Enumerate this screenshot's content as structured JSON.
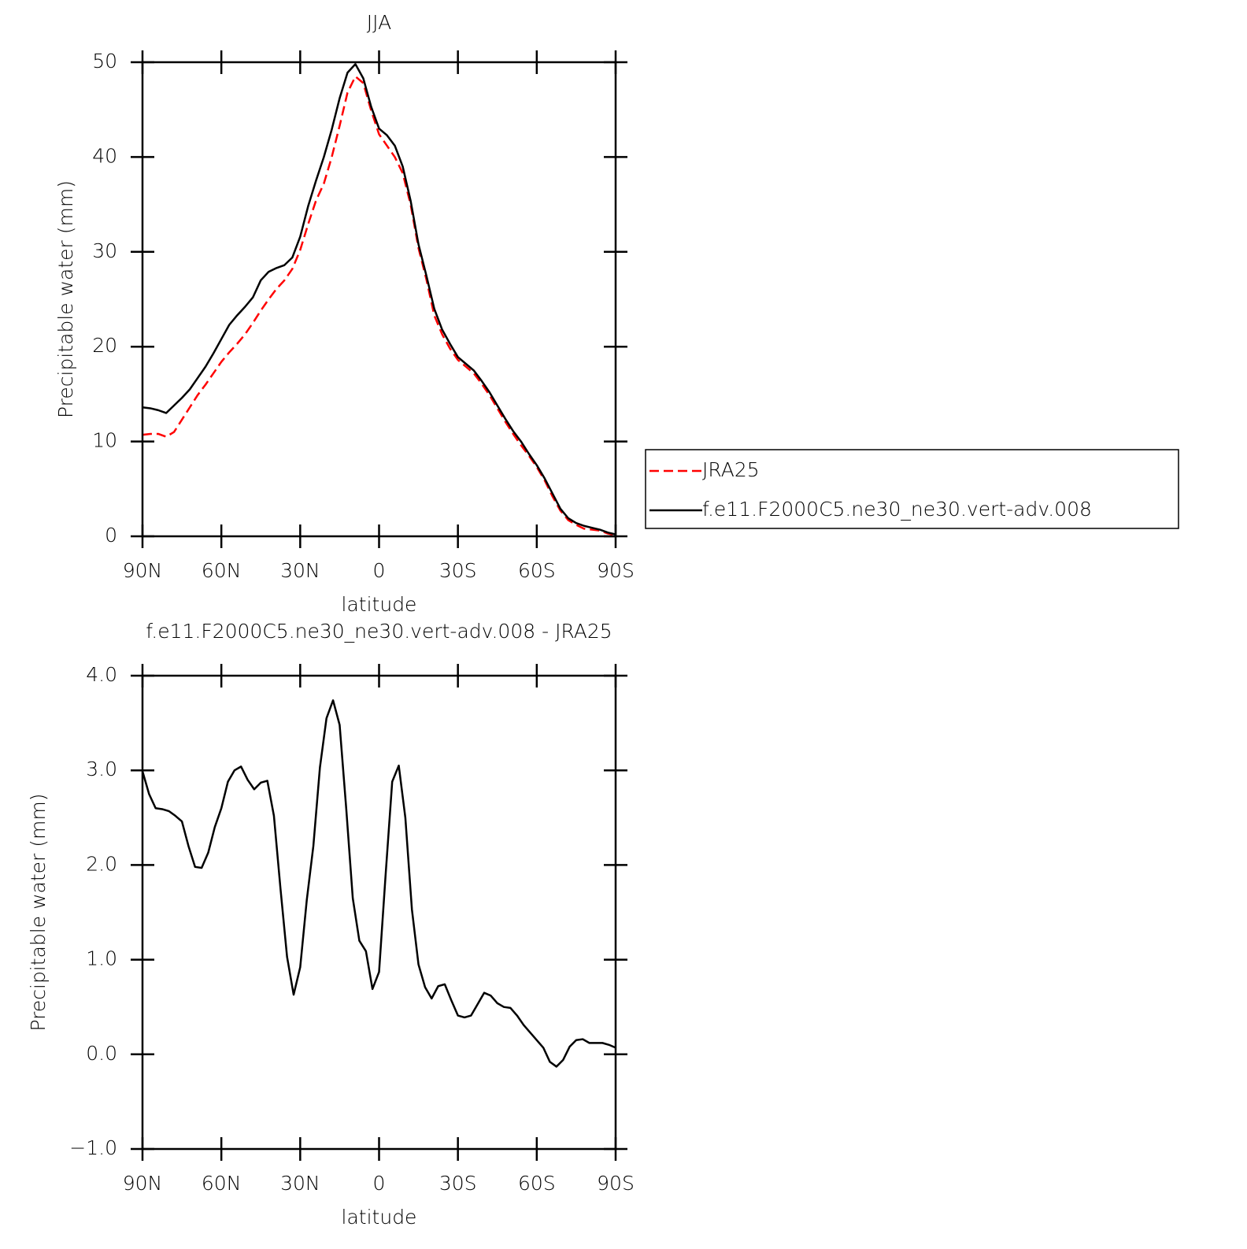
{
  "chart_data": [
    {
      "type": "line",
      "title": "JJA",
      "x_label": "latitude",
      "y_label": "Precipitable water (mm)",
      "x": [
        90,
        87,
        84,
        81,
        78,
        75,
        72,
        69,
        66,
        63,
        60,
        57,
        54,
        51,
        48,
        45,
        42,
        39,
        36,
        33,
        30,
        27,
        24,
        21,
        18,
        15,
        12,
        9,
        6,
        3,
        0,
        -3,
        -6,
        -9,
        -12,
        -15,
        -18,
        -21,
        -24,
        -27,
        -30,
        -33,
        -36,
        -39,
        -42,
        -45,
        -48,
        -51,
        -54,
        -57,
        -60,
        -63,
        -66,
        -69,
        -72,
        -75,
        -78,
        -81,
        -84,
        -87,
        -90
      ],
      "series": [
        {
          "name": "JRA25",
          "color": "#ff0000",
          "style": "dashed",
          "values": [
            10.7,
            10.8,
            10.8,
            10.5,
            11.0,
            12.3,
            13.6,
            14.9,
            16.0,
            17.2,
            18.4,
            19.4,
            20.3,
            21.3,
            22.5,
            23.8,
            25.0,
            26.1,
            27.0,
            28.2,
            30.2,
            32.9,
            35.4,
            37.2,
            40.0,
            43.3,
            46.8,
            48.5,
            47.8,
            44.9,
            42.4,
            41.2,
            40.0,
            38.3,
            35.0,
            30.4,
            27.1,
            23.3,
            21.3,
            19.8,
            18.6,
            17.9,
            17.2,
            16.1,
            14.9,
            13.5,
            12.1,
            10.8,
            9.6,
            8.5,
            7.3,
            5.9,
            4.2,
            2.7,
            1.7,
            1.2,
            0.8,
            0.7,
            0.6,
            0.3,
            0.1
          ]
        },
        {
          "name": "f.e11.F2000C5.ne30_ne30.vert-adv.008",
          "color": "#000000",
          "style": "solid",
          "values": [
            13.6,
            13.5,
            13.3,
            13.0,
            13.8,
            14.6,
            15.5,
            16.7,
            17.9,
            19.3,
            20.8,
            22.3,
            23.3,
            24.2,
            25.2,
            27.0,
            27.9,
            28.3,
            28.6,
            29.4,
            31.6,
            34.8,
            37.5,
            40.0,
            42.9,
            46.2,
            48.9,
            49.8,
            48.3,
            45.3,
            43.0,
            42.3,
            41.2,
            39.0,
            35.4,
            30.8,
            27.5,
            24.0,
            21.8,
            20.3,
            18.9,
            18.2,
            17.5,
            16.4,
            15.2,
            13.8,
            12.4,
            11.1,
            10.0,
            8.7,
            7.5,
            6.1,
            4.5,
            2.9,
            1.9,
            1.4,
            1.1,
            0.9,
            0.7,
            0.4,
            0.2
          ]
        }
      ],
      "xlim": [
        90,
        -90
      ],
      "xticks": [
        {
          "value": 90,
          "label": "90N"
        },
        {
          "value": 60,
          "label": "60N"
        },
        {
          "value": 30,
          "label": "30N"
        },
        0,
        {
          "value": -30,
          "label": "30S"
        },
        {
          "value": -60,
          "label": "60S"
        },
        {
          "value": -90,
          "label": "90S"
        }
      ],
      "ylim": [
        0,
        50
      ],
      "yticks": [
        0,
        10,
        20,
        30,
        40,
        50
      ],
      "legend": "right"
    },
    {
      "type": "line",
      "title": "f.e11.F2000C5.ne30_ne30.vert-adv.008 - JRA25",
      "x_label": "latitude",
      "y_label": "Precipitable water (mm)",
      "x": [
        90,
        87.5,
        85,
        82.5,
        80,
        77.5,
        75,
        72.5,
        70,
        67.5,
        65,
        62.5,
        60,
        57.5,
        55,
        52.5,
        50,
        47.5,
        45,
        42.5,
        40,
        37.5,
        35,
        32.5,
        30,
        27.5,
        25,
        22.5,
        20,
        17.5,
        15,
        12.5,
        10,
        7.5,
        5,
        2.5,
        0,
        -2.5,
        -5,
        -7.5,
        -10,
        -12.5,
        -15,
        -17.5,
        -20,
        -22.5,
        -25,
        -27.5,
        -30,
        -32.5,
        -35,
        -37.5,
        -40,
        -42.5,
        -45,
        -47.5,
        -50,
        -52.5,
        -55,
        -57.5,
        -60,
        -62.5,
        -65,
        -67.5,
        -70,
        -72.5,
        -75,
        -77.5,
        -80,
        -82.5,
        -85,
        -87.5,
        -90
      ],
      "series": [
        {
          "color": "#000000",
          "style": "solid",
          "values": [
            2.99,
            2.75,
            2.6,
            2.59,
            2.57,
            2.52,
            2.46,
            2.2,
            1.98,
            1.97,
            2.13,
            2.4,
            2.6,
            2.88,
            3.0,
            3.04,
            2.9,
            2.8,
            2.87,
            2.89,
            2.52,
            1.75,
            1.03,
            0.63,
            0.92,
            1.63,
            2.2,
            3.03,
            3.55,
            3.74,
            3.48,
            2.6,
            1.65,
            1.2,
            1.09,
            0.69,
            0.87,
            1.9,
            2.88,
            3.05,
            2.5,
            1.53,
            0.95,
            0.71,
            0.59,
            0.72,
            0.74,
            0.57,
            0.41,
            0.39,
            0.41,
            0.53,
            0.65,
            0.62,
            0.54,
            0.5,
            0.49,
            0.41,
            0.31,
            0.23,
            0.15,
            0.07,
            -0.08,
            -0.13,
            -0.06,
            0.08,
            0.15,
            0.16,
            0.12,
            0.12,
            0.12,
            0.1,
            0.07
          ]
        }
      ],
      "xlim": [
        90,
        -90
      ],
      "xticks": [
        {
          "value": 90,
          "label": "90N"
        },
        {
          "value": 60,
          "label": "60N"
        },
        {
          "value": 30,
          "label": "30N"
        },
        0,
        {
          "value": -30,
          "label": "30S"
        },
        {
          "value": -60,
          "label": "60S"
        },
        {
          "value": -90,
          "label": "90S"
        }
      ],
      "ylim": [
        -1,
        4
      ],
      "yticks": [
        {
          "value": -1,
          "label": "−1.0"
        },
        {
          "value": 0,
          "label": "0.0"
        },
        {
          "value": 1,
          "label": "1.0"
        },
        {
          "value": 2,
          "label": "2.0"
        },
        {
          "value": 3,
          "label": "3.0"
        },
        {
          "value": 4,
          "label": "4.0"
        }
      ]
    }
  ]
}
